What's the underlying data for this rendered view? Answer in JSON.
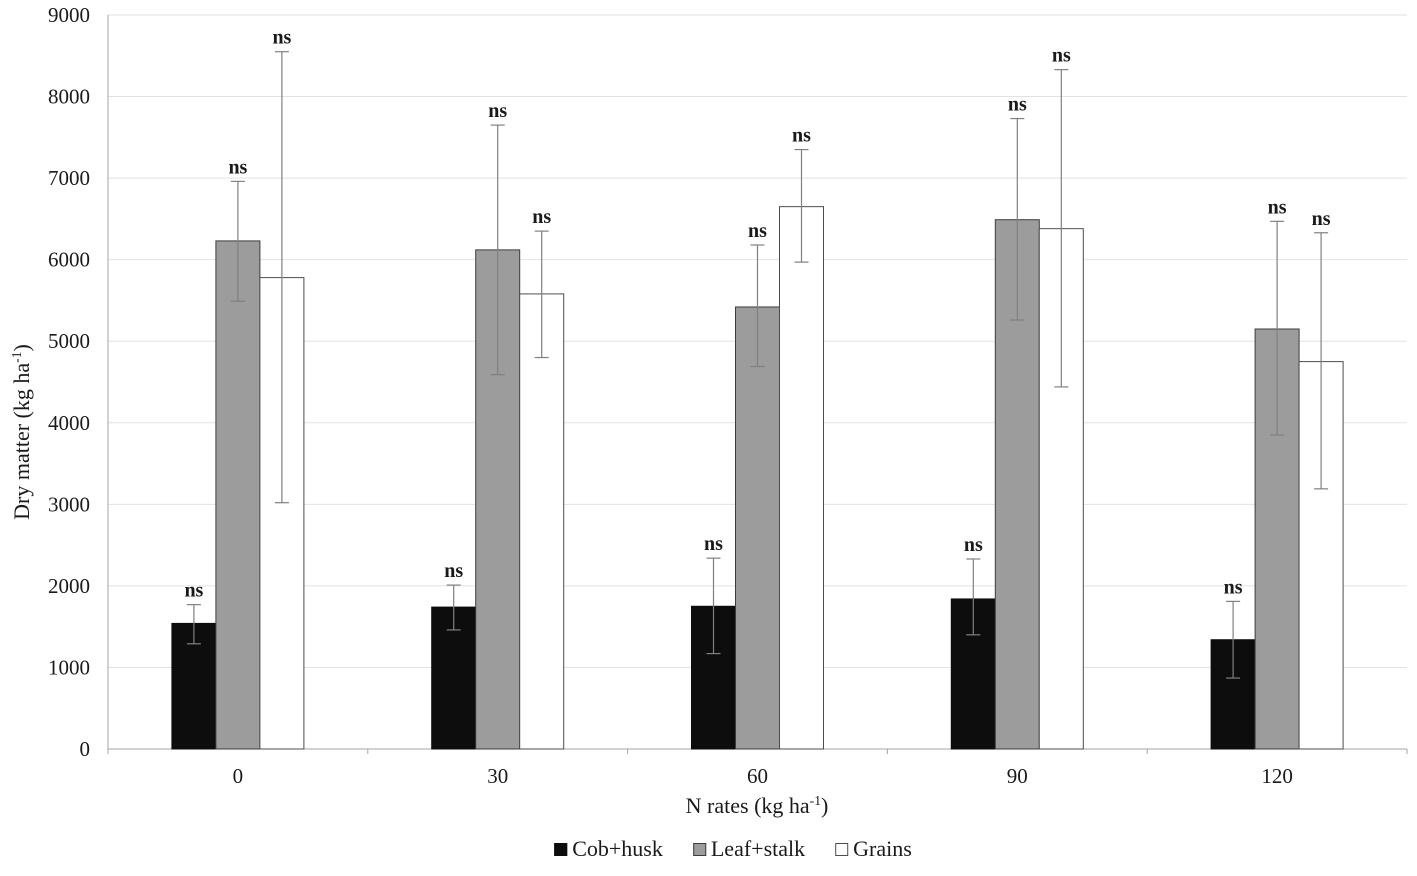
{
  "chart_data": {
    "type": "bar",
    "title": "",
    "xlabel": "N rates (kg ha^-1)",
    "ylabel": "Dry matter (kg ha^-1)",
    "categories": [
      "0",
      "30",
      "60",
      "90",
      "120"
    ],
    "x_axis": {
      "title_prefix": "N  rates (kg ha",
      "title_sup": "-1",
      "title_suffix": ")",
      "ticks": [
        "0",
        "30",
        "60",
        "90",
        "120"
      ]
    },
    "y_axis": {
      "title_prefix": "Dry matter (kg ha",
      "title_sup": "-1",
      "title_suffix": ")",
      "ticks": [
        "0",
        "1000",
        "2000",
        "3000",
        "4000",
        "5000",
        "6000",
        "7000",
        "8000",
        "9000"
      ],
      "min": 0,
      "max": 9000,
      "step": 1000
    },
    "series": [
      {
        "name": "Cob+husk",
        "fill": "#0d0d0d",
        "stroke": "#0d0d0d",
        "values": [
          1540,
          1740,
          1750,
          1840,
          1340
        ],
        "err_hi": [
          1770,
          2010,
          2340,
          2330,
          1810
        ],
        "err_lo": [
          1290,
          1460,
          1170,
          1400,
          870
        ],
        "sig": [
          "ns",
          "ns",
          "ns",
          "ns",
          "ns"
        ]
      },
      {
        "name": "Leaf+stalk",
        "fill": "#9c9c9c",
        "stroke": "#3d3d3d",
        "values": [
          6230,
          6120,
          5420,
          6490,
          5150
        ],
        "err_hi": [
          6960,
          7650,
          6180,
          7730,
          6470
        ],
        "err_lo": [
          5490,
          4590,
          4690,
          5260,
          3850
        ],
        "sig": [
          "ns",
          "ns",
          "ns",
          "ns",
          "ns"
        ]
      },
      {
        "name": "Grains",
        "fill": "#ffffff",
        "stroke": "#4d4d4d",
        "values": [
          5780,
          5580,
          6650,
          6380,
          4750
        ],
        "err_hi": [
          8550,
          6350,
          7350,
          8330,
          6330
        ],
        "err_lo": [
          3020,
          4800,
          5970,
          4440,
          3190
        ],
        "sig": [
          "ns",
          "ns",
          "ns",
          "ns",
          "ns"
        ]
      }
    ],
    "significance_label": "ns",
    "legend_position": "bottom",
    "grid": true,
    "colors": {
      "background": "#ffffff",
      "gridline": "#e2e2e2",
      "axis_line": "#a6a6a6",
      "error_bar": "#808080",
      "text": "#1a1a1a"
    }
  }
}
